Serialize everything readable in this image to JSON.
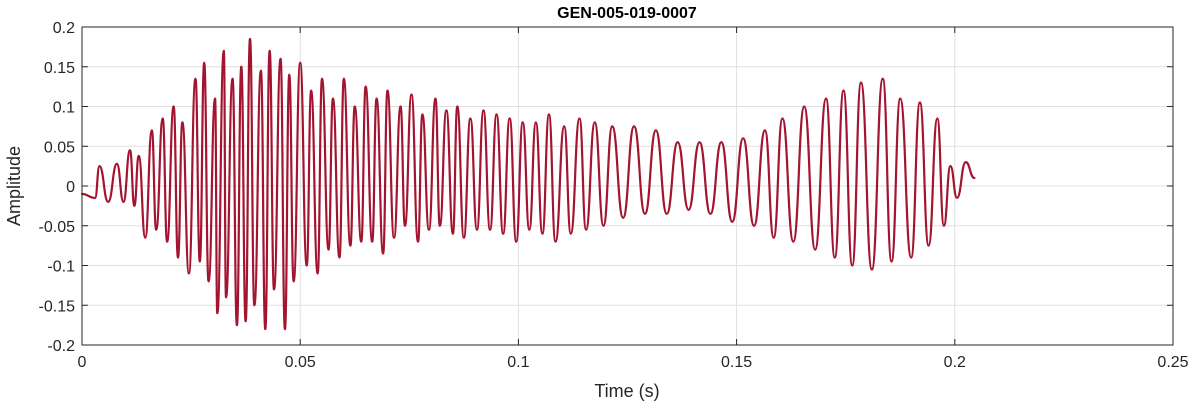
{
  "chart_data": {
    "type": "line",
    "title": "GEN-005-019-0007",
    "xlabel": "Time (s)",
    "ylabel": "Amplitude",
    "xlim": [
      0,
      0.25
    ],
    "ylim": [
      -0.2,
      0.2
    ],
    "xticks": [
      0,
      0.05,
      0.1,
      0.15,
      0.2,
      0.25
    ],
    "xtick_labels": [
      "0",
      "0.05",
      "0.1",
      "0.15",
      "0.2",
      "0.25"
    ],
    "yticks": [
      -0.2,
      -0.15,
      -0.1,
      -0.05,
      0,
      0.05,
      0.1,
      0.15,
      0.2
    ],
    "ytick_labels": [
      "-0.2",
      "-0.15",
      "-0.1",
      "-0.05",
      "0",
      "0.05",
      "0.1",
      "0.15",
      "0.2"
    ],
    "grid": true,
    "series": [
      {
        "color": "#A2142F",
        "x": [
          0,
          0.003,
          0.004,
          0.006,
          0.008,
          0.0095,
          0.011,
          0.012,
          0.013,
          0.0145,
          0.016,
          0.017,
          0.0185,
          0.0195,
          0.021,
          0.022,
          0.023,
          0.0245,
          0.026,
          0.027,
          0.028,
          0.029,
          0.0305,
          0.031,
          0.0325,
          0.033,
          0.0345,
          0.0355,
          0.0365,
          0.0375,
          0.0385,
          0.0395,
          0.041,
          0.042,
          0.043,
          0.044,
          0.0455,
          0.0465,
          0.0475,
          0.0485,
          0.05,
          0.0515,
          0.0525,
          0.054,
          0.055,
          0.0565,
          0.0575,
          0.059,
          0.06,
          0.0615,
          0.0625,
          0.064,
          0.065,
          0.0665,
          0.0675,
          0.069,
          0.07,
          0.0715,
          0.073,
          0.074,
          0.0755,
          0.077,
          0.078,
          0.0795,
          0.081,
          0.082,
          0.0835,
          0.085,
          0.086,
          0.0875,
          0.089,
          0.0905,
          0.092,
          0.0935,
          0.095,
          0.0965,
          0.098,
          0.0995,
          0.101,
          0.1025,
          0.104,
          0.1055,
          0.107,
          0.1085,
          0.1105,
          0.112,
          0.114,
          0.1155,
          0.1175,
          0.1195,
          0.1215,
          0.124,
          0.1265,
          0.129,
          0.1315,
          0.134,
          0.1365,
          0.139,
          0.1415,
          0.144,
          0.1465,
          0.149,
          0.1515,
          0.154,
          0.1565,
          0.1585,
          0.1605,
          0.163,
          0.1655,
          0.168,
          0.1705,
          0.1725,
          0.1745,
          0.1765,
          0.1785,
          0.181,
          0.1835,
          0.1855,
          0.1875,
          0.19,
          0.192,
          0.194,
          0.196,
          0.1975,
          0.199,
          0.2005,
          0.2025,
          0.2045
        ],
        "y": [
          -0.01,
          -0.015,
          0.025,
          -0.02,
          0.028,
          -0.02,
          0.045,
          -0.025,
          0.038,
          -0.065,
          0.07,
          -0.055,
          0.085,
          -0.07,
          0.1,
          -0.09,
          0.08,
          -0.11,
          0.135,
          -0.095,
          0.155,
          -0.12,
          0.11,
          -0.16,
          0.17,
          -0.14,
          0.135,
          -0.175,
          0.15,
          -0.17,
          0.185,
          -0.15,
          0.145,
          -0.18,
          0.17,
          -0.13,
          0.16,
          -0.18,
          0.14,
          -0.12,
          0.155,
          -0.1,
          0.12,
          -0.11,
          0.135,
          -0.08,
          0.11,
          -0.09,
          0.135,
          -0.075,
          0.1,
          -0.07,
          0.125,
          -0.07,
          0.11,
          -0.085,
          0.12,
          -0.065,
          0.1,
          -0.05,
          0.115,
          -0.07,
          0.09,
          -0.055,
          0.11,
          -0.05,
          0.095,
          -0.06,
          0.1,
          -0.065,
          0.085,
          -0.055,
          0.095,
          -0.055,
          0.09,
          -0.06,
          0.085,
          -0.07,
          0.08,
          -0.055,
          0.08,
          -0.06,
          0.09,
          -0.07,
          0.075,
          -0.06,
          0.085,
          -0.055,
          0.08,
          -0.05,
          0.075,
          -0.04,
          0.075,
          -0.035,
          0.07,
          -0.035,
          0.055,
          -0.03,
          0.055,
          -0.035,
          0.055,
          -0.045,
          0.06,
          -0.05,
          0.07,
          -0.065,
          0.085,
          -0.07,
          0.1,
          -0.08,
          0.11,
          -0.09,
          0.12,
          -0.1,
          0.13,
          -0.105,
          0.135,
          -0.095,
          0.11,
          -0.09,
          0.105,
          -0.075,
          0.085,
          -0.05,
          0.025,
          -0.015,
          0.03,
          0.01
        ]
      }
    ]
  }
}
